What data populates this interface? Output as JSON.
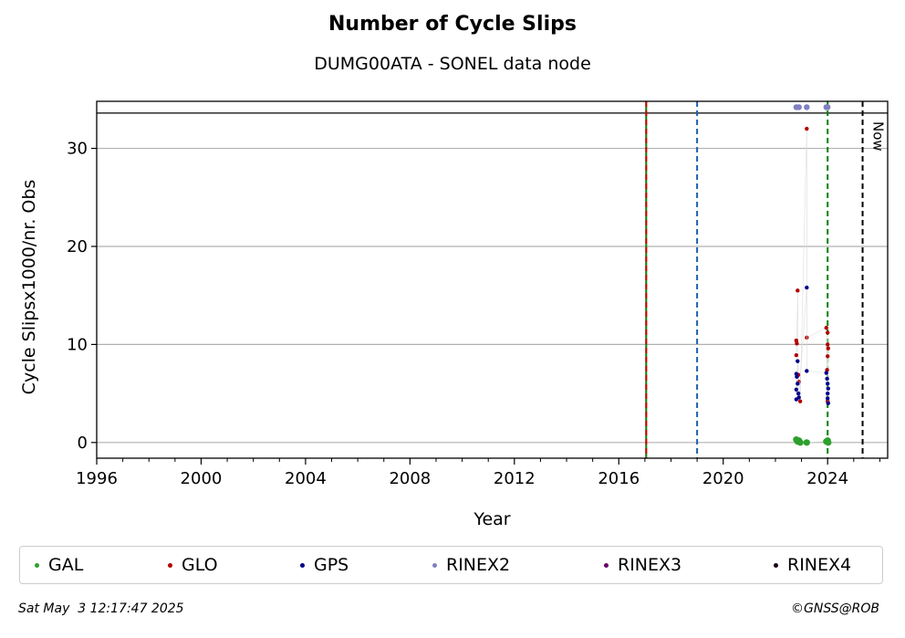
{
  "colors": {
    "GAL": "#2ca02c",
    "GLO": "#b20000",
    "GPS": "#00008b",
    "RINEX2": "#8080c0",
    "RINEX3": "#660066",
    "RINEX4": "#1a0014",
    "vline_green": "#008000",
    "vline_red": "#cc0000",
    "vline_blue": "#1f5fb0",
    "vline_now": "#000000"
  },
  "chart_data": {
    "type": "scatter",
    "title": "Number of Cycle Slips",
    "subtitle": "DUMG00ATA - SONEL data node",
    "xlabel": "Year",
    "ylabel": "Cycle Slipsx1000/nr. Obs",
    "xlim": [
      1996,
      2026.3
    ],
    "ylim": [
      -1.6,
      34.8
    ],
    "x_ticks": [
      1996,
      2000,
      2004,
      2008,
      2012,
      2016,
      2020,
      2024
    ],
    "y_ticks": [
      0,
      10,
      20,
      30
    ],
    "grid": "horizontal",
    "hline": 33.6,
    "vlines": [
      {
        "x": 2017.05,
        "style": "solid",
        "color": "green"
      },
      {
        "x": 2017.05,
        "style": "dashed",
        "color": "red"
      },
      {
        "x": 2019.0,
        "style": "dashed",
        "color": "blue"
      },
      {
        "x": 2024.0,
        "style": "dashed",
        "color": "green"
      },
      {
        "x": 2025.34,
        "style": "dashed",
        "color": "black",
        "label": "Now"
      }
    ],
    "series": [
      {
        "name": "GAL",
        "points": [
          [
            2022.8,
            0.3
          ],
          [
            2022.85,
            0.1
          ],
          [
            2022.9,
            0.2
          ],
          [
            2022.95,
            0.0
          ],
          [
            2023.2,
            0.0
          ],
          [
            2023.95,
            0.1
          ],
          [
            2024.0,
            0.2
          ],
          [
            2024.02,
            0.0
          ]
        ]
      },
      {
        "name": "GLO",
        "points": [
          [
            2022.8,
            10.4
          ],
          [
            2022.82,
            10.1
          ],
          [
            2022.85,
            15.5
          ],
          [
            2022.8,
            8.9
          ],
          [
            2022.88,
            6.9
          ],
          [
            2022.9,
            6.2
          ],
          [
            2022.95,
            4.2
          ],
          [
            2023.2,
            32.0
          ],
          [
            2023.2,
            10.7
          ],
          [
            2023.95,
            11.7
          ],
          [
            2024.0,
            11.2
          ],
          [
            2024.0,
            10.0
          ],
          [
            2024.02,
            9.6
          ],
          [
            2024.0,
            8.8
          ],
          [
            2023.98,
            7.4
          ],
          [
            2024.0,
            4.2
          ]
        ]
      },
      {
        "name": "GPS",
        "points": [
          [
            2022.8,
            7.0
          ],
          [
            2022.82,
            6.7
          ],
          [
            2022.85,
            8.3
          ],
          [
            2022.85,
            6.0
          ],
          [
            2022.8,
            5.4
          ],
          [
            2022.88,
            5.0
          ],
          [
            2022.9,
            4.6
          ],
          [
            2022.8,
            4.4
          ],
          [
            2023.2,
            15.8
          ],
          [
            2023.2,
            7.3
          ],
          [
            2023.95,
            7.1
          ],
          [
            2023.98,
            6.5
          ],
          [
            2024.0,
            6.0
          ],
          [
            2024.02,
            5.5
          ],
          [
            2024.0,
            5.0
          ],
          [
            2024.0,
            4.5
          ],
          [
            2024.02,
            4.0
          ]
        ]
      },
      {
        "name": "RINEX2",
        "points": [
          [
            2022.8,
            34.2
          ],
          [
            2022.9,
            34.2
          ],
          [
            2023.2,
            34.2
          ],
          [
            2023.95,
            34.2
          ],
          [
            2024.0,
            34.2
          ]
        ]
      },
      {
        "name": "RINEX3",
        "points": []
      },
      {
        "name": "RINEX4",
        "points": []
      }
    ]
  },
  "legend": [
    "GAL",
    "GLO",
    "GPS",
    "RINEX2",
    "RINEX3",
    "RINEX4"
  ],
  "footer_left": "Sat May  3 12:17:47 2025",
  "footer_right": "©GNSS@ROB"
}
